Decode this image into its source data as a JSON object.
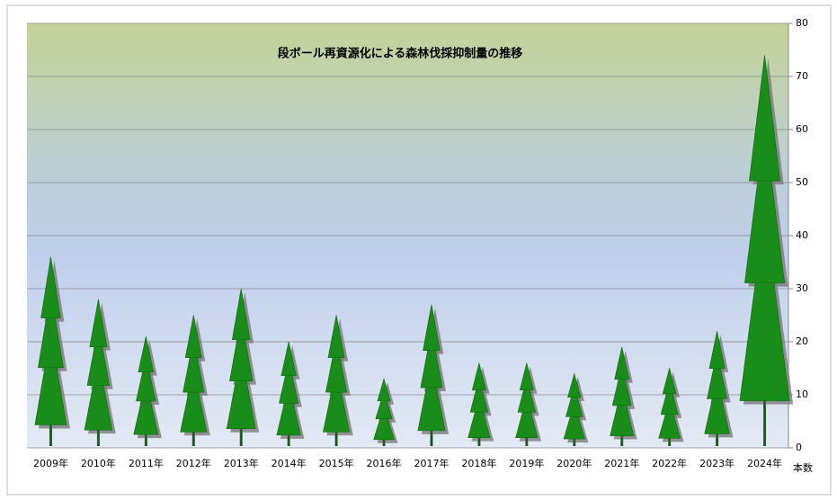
{
  "chart_data": {
    "type": "tree-bar",
    "title": "段ボール再資源化による森林伐採抑制量の推移",
    "y_label": "本数",
    "categories": [
      "2009年",
      "2010年",
      "2011年",
      "2012年",
      "2013年",
      "2014年",
      "2015年",
      "2016年",
      "2017年",
      "2018年",
      "2019年",
      "2020年",
      "2021年",
      "2022年",
      "2023年",
      "2024年"
    ],
    "values": [
      36,
      28,
      21,
      25,
      30,
      20,
      25,
      13,
      27,
      16,
      16,
      14,
      19,
      15,
      22,
      74
    ],
    "color": "#1a8c1a",
    "ylim": [
      0,
      80
    ],
    "yticks": [
      0,
      10,
      20,
      30,
      40,
      50,
      60,
      70,
      80
    ],
    "grid": true
  }
}
